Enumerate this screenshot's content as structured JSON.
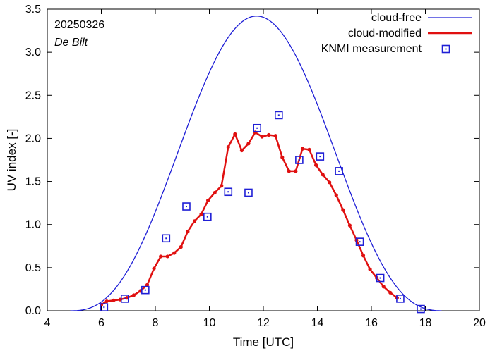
{
  "chart_data": {
    "type": "line",
    "title": "",
    "xlabel": "Time  [UTC]",
    "ylabel": "UV index  [-]",
    "xlim": [
      4,
      20
    ],
    "ylim": [
      0,
      3.5
    ],
    "xticks": [
      4,
      6,
      8,
      10,
      12,
      14,
      16,
      18,
      20
    ],
    "xtick_labels": [
      "4",
      "6",
      "8",
      "10",
      "12",
      "14",
      "16",
      "18",
      "20"
    ],
    "yticks": [
      0,
      0.5,
      1.0,
      1.5,
      2.0,
      2.5,
      3.0,
      3.5
    ],
    "ytick_labels": [
      "0.0",
      "0.5",
      "1.0",
      "1.5",
      "2.0",
      "2.5",
      "3.0",
      "3.5"
    ],
    "grid": false,
    "legend_position": "top-right",
    "annotations": [
      {
        "text": "20250326",
        "style": "normal"
      },
      {
        "text": "De Bilt",
        "style": "italic"
      }
    ],
    "series": [
      {
        "name": "cloud-free",
        "kind": "curve",
        "color": "#1f1fd6",
        "peak_time": 11.75,
        "peak_value": 3.42,
        "start_time": 4.85,
        "end_time": 18.65
      },
      {
        "name": "cloud-modified",
        "kind": "line-markers",
        "color": "#e01010",
        "x": [
          6.0,
          6.2,
          6.45,
          6.7,
          6.95,
          7.2,
          7.45,
          7.7,
          7.95,
          8.2,
          8.45,
          8.7,
          8.95,
          9.2,
          9.45,
          9.7,
          9.95,
          10.2,
          10.45,
          10.7,
          10.95,
          11.2,
          11.45,
          11.7,
          11.95,
          12.2,
          12.45,
          12.7,
          12.95,
          13.2,
          13.45,
          13.7,
          13.95,
          14.2,
          14.45,
          14.7,
          14.95,
          15.2,
          15.45,
          15.7,
          15.95,
          16.2,
          16.45,
          16.7,
          16.95
        ],
        "values": [
          0.07,
          0.11,
          0.12,
          0.13,
          0.15,
          0.18,
          0.23,
          0.3,
          0.49,
          0.63,
          0.63,
          0.67,
          0.74,
          0.92,
          1.04,
          1.12,
          1.28,
          1.37,
          1.45,
          1.9,
          2.05,
          1.86,
          1.94,
          2.07,
          2.02,
          2.04,
          2.03,
          1.78,
          1.62,
          1.62,
          1.88,
          1.87,
          1.69,
          1.58,
          1.49,
          1.34,
          1.17,
          0.99,
          0.82,
          0.64,
          0.48,
          0.38,
          0.28,
          0.21,
          0.15
        ]
      },
      {
        "name": "KNMI measurement",
        "kind": "markers",
        "color": "#1f1fd6",
        "x": [
          6.1,
          6.87,
          7.63,
          8.4,
          9.15,
          9.93,
          10.7,
          11.45,
          11.77,
          12.57,
          13.33,
          14.1,
          14.8,
          15.57,
          16.33,
          17.07,
          17.83
        ],
        "values": [
          0.04,
          0.14,
          0.24,
          0.84,
          1.21,
          1.09,
          1.38,
          1.37,
          2.12,
          2.27,
          1.75,
          1.79,
          1.62,
          0.8,
          0.38,
          0.14,
          0.02
        ]
      }
    ]
  }
}
